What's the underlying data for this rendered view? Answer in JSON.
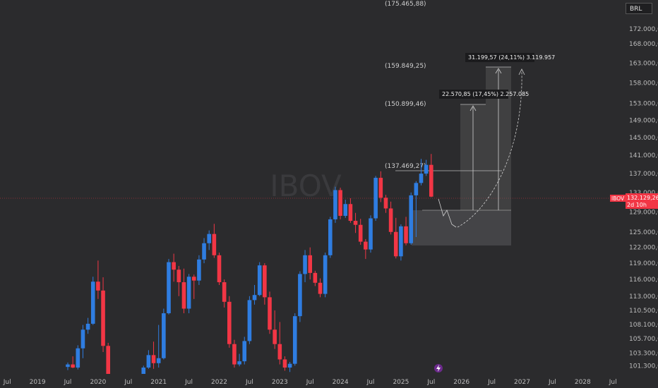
{
  "watermark": "IBOV",
  "currency": "BRL",
  "colors": {
    "up": "#2f7de1",
    "down": "#f23645",
    "bg": "#2b2b2d",
    "price_tag": "#f23645"
  },
  "price_tag": {
    "symbol": "IBOV",
    "price": "132.129,26",
    "countdown": "2d 10h"
  },
  "x_axis_labels": [
    "Jul",
    "2019",
    "Jul",
    "2020",
    "Jul",
    "2021",
    "Jul",
    "2022",
    "Jul",
    "2023",
    "Jul",
    "2024",
    "Jul",
    "2025",
    "Jul",
    "2026",
    "Jul",
    "2027",
    "Jul",
    "2028",
    "Jul"
  ],
  "y_axis_labels": [
    "172.000,00",
    "168.000,00",
    "163.000,00",
    "158.000,00",
    "153.000,00",
    "149.000,00",
    "145.000,00",
    "141.000,00",
    "137.000,00",
    "133.000,00",
    "129.000,00",
    "125.000,00",
    "122.000,00",
    "119.000,00",
    "116.000,00",
    "113.000,00",
    "110.500,00",
    "108.100,00",
    "105.700,00",
    "103.300,00",
    "101.300,00"
  ],
  "price_levels": [
    "(175.465,88)",
    "(159.849,25)",
    "(150.899,46)",
    "(137.469,27)"
  ],
  "measurements": [
    {
      "text": "22.570,85 (17,45%) 2.257.085"
    },
    {
      "text": "31.199,57 (24,11%) 3.119.957"
    }
  ],
  "chart_data": {
    "type": "candlestick",
    "ylim": [
      100000,
      178000
    ],
    "y_scale": "log",
    "current_price": 132129.26,
    "candles": [
      {
        "date": "2019-07",
        "o": 101100,
        "h": 101800,
        "l": 100600,
        "c": 101500
      },
      {
        "date": "2019-08",
        "o": 101500,
        "h": 102800,
        "l": 100900,
        "c": 101000
      },
      {
        "date": "2019-09",
        "o": 101000,
        "h": 104600,
        "l": 100700,
        "c": 104100
      },
      {
        "date": "2019-10",
        "o": 104100,
        "h": 108000,
        "l": 102500,
        "c": 107200
      },
      {
        "date": "2019-11",
        "o": 107200,
        "h": 109200,
        "l": 106500,
        "c": 108200
      },
      {
        "date": "2019-12",
        "o": 108200,
        "h": 116500,
        "l": 108000,
        "c": 115600
      },
      {
        "date": "2020-01",
        "o": 115600,
        "h": 119500,
        "l": 112500,
        "c": 114000
      },
      {
        "date": "2020-02",
        "o": 114000,
        "h": 116400,
        "l": 103500,
        "c": 104500
      },
      {
        "date": "2020-03",
        "o": 104500,
        "h": 105000,
        "l": 100000,
        "c": 100000
      },
      {
        "date": "2020-10",
        "o": 100000,
        "h": 101300,
        "l": 100000,
        "c": 101000
      },
      {
        "date": "2020-11",
        "o": 101000,
        "h": 103800,
        "l": 100800,
        "c": 103000
      },
      {
        "date": "2020-12",
        "o": 103000,
        "h": 105200,
        "l": 100800,
        "c": 101700
      },
      {
        "date": "2021-01",
        "o": 101700,
        "h": 108000,
        "l": 101000,
        "c": 102500
      },
      {
        "date": "2021-02",
        "o": 102500,
        "h": 110800,
        "l": 102300,
        "c": 110000
      },
      {
        "date": "2021-03",
        "o": 110000,
        "h": 119800,
        "l": 109800,
        "c": 119200
      },
      {
        "date": "2021-04",
        "o": 119200,
        "h": 120800,
        "l": 115600,
        "c": 117800
      },
      {
        "date": "2021-05",
        "o": 117800,
        "h": 118500,
        "l": 113000,
        "c": 115500
      },
      {
        "date": "2021-06",
        "o": 115500,
        "h": 118000,
        "l": 110000,
        "c": 110800
      },
      {
        "date": "2021-07",
        "o": 110800,
        "h": 117000,
        "l": 110000,
        "c": 116500
      },
      {
        "date": "2021-08",
        "o": 116500,
        "h": 116900,
        "l": 112500,
        "c": 115800
      },
      {
        "date": "2021-09",
        "o": 115800,
        "h": 120500,
        "l": 115000,
        "c": 119700
      },
      {
        "date": "2021-10",
        "o": 119700,
        "h": 123800,
        "l": 119000,
        "c": 122800
      },
      {
        "date": "2021-11",
        "o": 122800,
        "h": 125300,
        "l": 121500,
        "c": 124600
      },
      {
        "date": "2021-12",
        "o": 124600,
        "h": 126600,
        "l": 120000,
        "c": 120500
      },
      {
        "date": "2022-01",
        "o": 120500,
        "h": 121000,
        "l": 115000,
        "c": 115500
      },
      {
        "date": "2022-02",
        "o": 115500,
        "h": 116000,
        "l": 111000,
        "c": 112000
      },
      {
        "date": "2022-03",
        "o": 112000,
        "h": 113000,
        "l": 104200,
        "c": 104800
      },
      {
        "date": "2022-04",
        "o": 104800,
        "h": 105500,
        "l": 101000,
        "c": 101500
      },
      {
        "date": "2022-05",
        "o": 101500,
        "h": 103200,
        "l": 101200,
        "c": 102000
      },
      {
        "date": "2022-06",
        "o": 102000,
        "h": 106000,
        "l": 101500,
        "c": 105300
      },
      {
        "date": "2022-07",
        "o": 105300,
        "h": 113000,
        "l": 104800,
        "c": 112300
      },
      {
        "date": "2022-08",
        "o": 112300,
        "h": 115000,
        "l": 111500,
        "c": 113200
      },
      {
        "date": "2022-09",
        "o": 113200,
        "h": 119200,
        "l": 113000,
        "c": 118600
      },
      {
        "date": "2022-10",
        "o": 118600,
        "h": 119000,
        "l": 111500,
        "c": 112800
      },
      {
        "date": "2022-11",
        "o": 112800,
        "h": 113800,
        "l": 106500,
        "c": 107200
      },
      {
        "date": "2022-12",
        "o": 107200,
        "h": 110500,
        "l": 104000,
        "c": 104800
      },
      {
        "date": "2023-01",
        "o": 104800,
        "h": 108500,
        "l": 101500,
        "c": 102300
      },
      {
        "date": "2023-02",
        "o": 102300,
        "h": 102800,
        "l": 100500,
        "c": 101000
      },
      {
        "date": "2023-03",
        "o": 101000,
        "h": 101900,
        "l": 100300,
        "c": 101600
      },
      {
        "date": "2023-04",
        "o": 101600,
        "h": 110000,
        "l": 101300,
        "c": 109500
      },
      {
        "date": "2023-05",
        "o": 109500,
        "h": 117500,
        "l": 108500,
        "c": 117000
      },
      {
        "date": "2023-06",
        "o": 117000,
        "h": 121500,
        "l": 115500,
        "c": 120500
      },
      {
        "date": "2023-07",
        "o": 120500,
        "h": 122000,
        "l": 116000,
        "c": 117200
      },
      {
        "date": "2023-08",
        "o": 117200,
        "h": 117600,
        "l": 114800,
        "c": 115400
      },
      {
        "date": "2023-09",
        "o": 115400,
        "h": 116200,
        "l": 112800,
        "c": 113400
      },
      {
        "date": "2023-10",
        "o": 113400,
        "h": 121000,
        "l": 112800,
        "c": 120500
      },
      {
        "date": "2023-11",
        "o": 120500,
        "h": 128000,
        "l": 120000,
        "c": 127500
      },
      {
        "date": "2023-12",
        "o": 127500,
        "h": 134200,
        "l": 126800,
        "c": 133500
      },
      {
        "date": "2024-01",
        "o": 133500,
        "h": 134000,
        "l": 127500,
        "c": 128200
      },
      {
        "date": "2024-02",
        "o": 128200,
        "h": 131500,
        "l": 127800,
        "c": 130600
      },
      {
        "date": "2024-03",
        "o": 130600,
        "h": 131800,
        "l": 126800,
        "c": 127200
      },
      {
        "date": "2024-04",
        "o": 127200,
        "h": 128800,
        "l": 124800,
        "c": 126400
      },
      {
        "date": "2024-05",
        "o": 126400,
        "h": 127600,
        "l": 122500,
        "c": 123100
      },
      {
        "date": "2024-06",
        "o": 123100,
        "h": 123600,
        "l": 119800,
        "c": 121600
      },
      {
        "date": "2024-07",
        "o": 121600,
        "h": 128300,
        "l": 121000,
        "c": 127700
      },
      {
        "date": "2024-08",
        "o": 127700,
        "h": 136500,
        "l": 127200,
        "c": 136100
      },
      {
        "date": "2024-09",
        "o": 136100,
        "h": 137500,
        "l": 131000,
        "c": 131900
      },
      {
        "date": "2024-10",
        "o": 131900,
        "h": 132500,
        "l": 128800,
        "c": 129700
      },
      {
        "date": "2024-11",
        "o": 129700,
        "h": 131100,
        "l": 124500,
        "c": 125000
      },
      {
        "date": "2024-12",
        "o": 125000,
        "h": 127800,
        "l": 119900,
        "c": 120300
      },
      {
        "date": "2025-01",
        "o": 120300,
        "h": 126500,
        "l": 119500,
        "c": 126100
      },
      {
        "date": "2025-02",
        "o": 126100,
        "h": 128000,
        "l": 122400,
        "c": 122800
      },
      {
        "date": "2025-03",
        "o": 122800,
        "h": 133000,
        "l": 122500,
        "c": 132400
      },
      {
        "date": "2025-04",
        "o": 132400,
        "h": 135400,
        "l": 124000,
        "c": 135000
      },
      {
        "date": "2025-05",
        "o": 135000,
        "h": 140200,
        "l": 134500,
        "c": 137000
      },
      {
        "date": "2025-06",
        "o": 137000,
        "h": 140000,
        "l": 136500,
        "c": 138900
      },
      {
        "date": "2025-07",
        "o": 138900,
        "h": 141300,
        "l": 132000,
        "c": 132129.26
      }
    ]
  }
}
